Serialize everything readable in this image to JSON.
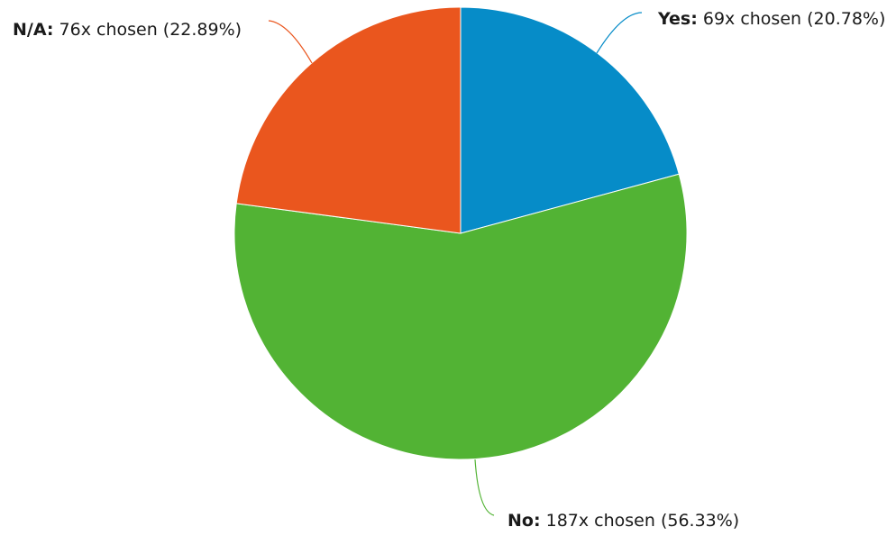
{
  "chart_data": {
    "type": "pie",
    "slices": [
      {
        "name": "Yes",
        "name_text": "Yes:",
        "count": 69,
        "percent": 20.78,
        "detail": "69x chosen (20.78%)",
        "color": "#068cc8"
      },
      {
        "name": "No",
        "name_text": "No:",
        "count": 187,
        "percent": 56.33,
        "detail": "187x chosen (56.33%)",
        "color": "#52b334"
      },
      {
        "name": "N/A",
        "name_text": "N/A:",
        "count": 76,
        "percent": 22.89,
        "detail": "76x chosen (22.89%)",
        "color": "#ea561e"
      }
    ],
    "start_angle": "top",
    "direction": "clockwise",
    "legend": "none",
    "data_labels": "outside with leader lines"
  }
}
